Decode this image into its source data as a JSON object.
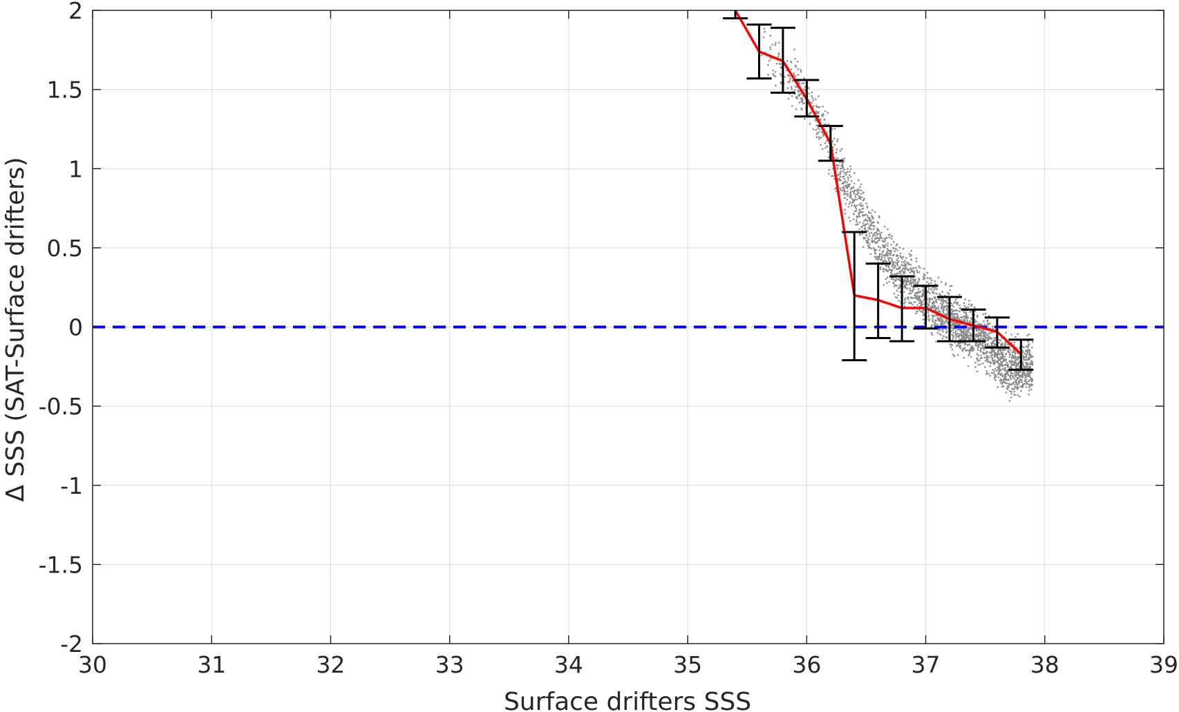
{
  "chart_data": {
    "type": "scatter",
    "title": "",
    "xlabel": "Surface drifters SSS",
    "ylabel": "Δ SSS (SAT-Surface drifters)",
    "xlim": [
      30,
      39
    ],
    "ylim": [
      -2,
      2
    ],
    "xticks": [
      "30",
      "31",
      "32",
      "33",
      "34",
      "35",
      "36",
      "37",
      "38",
      "39"
    ],
    "yticks": [
      "2",
      "1.5",
      "1",
      "0.5",
      "0",
      "-0.5",
      "-1",
      "-1.5",
      "-2"
    ],
    "grid": true,
    "legend": "none",
    "colors": {
      "scatter": "#8c8c8c",
      "mean_line": "#ff0000",
      "error_bars": "#000000",
      "reference_line": "#0000ff",
      "grid": "#dcdcdc",
      "axes": "#262626"
    },
    "reference_line": {
      "y": 0,
      "style": "dashed"
    },
    "scatter_band": {
      "description_from_figure": "dense gray points, sloping downward",
      "centerline": [
        [
          35.6,
          1.8
        ],
        [
          35.9,
          1.55
        ],
        [
          36.1,
          1.3
        ],
        [
          36.3,
          0.95
        ],
        [
          36.5,
          0.65
        ],
        [
          36.7,
          0.4
        ],
        [
          36.9,
          0.25
        ],
        [
          37.1,
          0.1
        ],
        [
          37.3,
          0.0
        ],
        [
          37.5,
          -0.1
        ],
        [
          37.7,
          -0.25
        ]
      ],
      "spread": 0.25
    },
    "binned_mean": {
      "x": [
        35.4,
        35.6,
        35.8,
        36.0,
        36.2,
        36.4,
        36.6,
        36.8,
        37.0,
        37.2,
        37.4,
        37.6,
        37.8
      ],
      "mean": [
        2.0,
        1.74,
        1.68,
        1.44,
        1.16,
        0.2,
        0.17,
        0.12,
        0.12,
        0.05,
        0.01,
        -0.03,
        -0.17
      ],
      "lower": [
        1.95,
        1.57,
        1.48,
        1.33,
        1.05,
        -0.21,
        -0.07,
        -0.09,
        -0.01,
        -0.09,
        -0.09,
        -0.13,
        -0.27
      ],
      "upper": [
        2.05,
        1.91,
        1.89,
        1.56,
        1.27,
        0.6,
        0.4,
        0.32,
        0.26,
        0.19,
        0.11,
        0.06,
        -0.08
      ]
    }
  }
}
